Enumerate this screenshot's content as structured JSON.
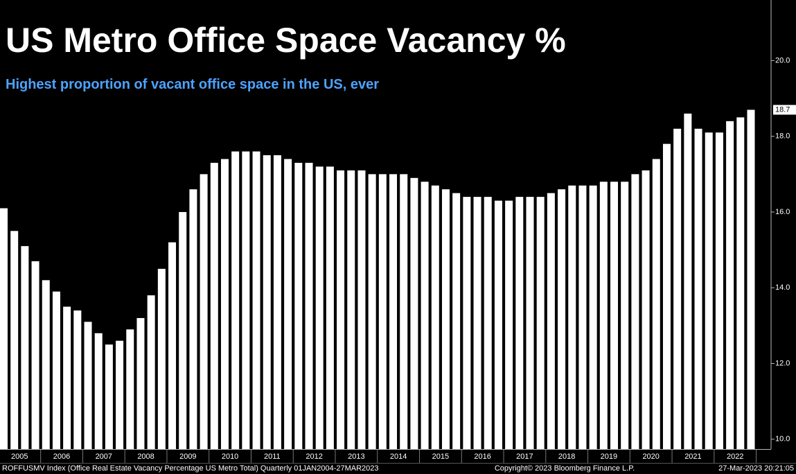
{
  "chart_data": {
    "type": "bar",
    "title": "US Metro Office Space Vacancy %",
    "subtitle": "Highest proportion of vacant office space in the US, ever",
    "categories": [
      "2005",
      null,
      null,
      null,
      "2006",
      null,
      null,
      null,
      "2007",
      null,
      null,
      null,
      "2008",
      null,
      null,
      null,
      "2009",
      null,
      null,
      null,
      "2010",
      null,
      null,
      null,
      "2011",
      null,
      null,
      null,
      "2012",
      null,
      null,
      null,
      "2013",
      null,
      null,
      null,
      "2014",
      null,
      null,
      null,
      "2015",
      null,
      null,
      null,
      "2016",
      null,
      null,
      null,
      "2017",
      null,
      null,
      null,
      "2018",
      null,
      null,
      null,
      "2019",
      null,
      null,
      null,
      "2020",
      null,
      null,
      null,
      "2021",
      null,
      null,
      null,
      "2022",
      null,
      null,
      null
    ],
    "values": [
      16.1,
      15.5,
      15.1,
      14.7,
      14.2,
      13.9,
      13.5,
      13.4,
      13.1,
      12.8,
      12.5,
      12.6,
      12.9,
      13.2,
      13.8,
      14.5,
      15.2,
      16.0,
      16.6,
      17.0,
      17.3,
      17.4,
      17.6,
      17.6,
      17.6,
      17.5,
      17.5,
      17.4,
      17.3,
      17.3,
      17.2,
      17.2,
      17.1,
      17.1,
      17.1,
      17.0,
      17.0,
      17.0,
      17.0,
      16.9,
      16.8,
      16.7,
      16.6,
      16.5,
      16.4,
      16.4,
      16.4,
      16.3,
      16.3,
      16.4,
      16.4,
      16.4,
      16.5,
      16.6,
      16.7,
      16.7,
      16.7,
      16.8,
      16.8,
      16.8,
      17.0,
      17.1,
      17.4,
      17.8,
      18.2,
      18.6,
      18.2,
      18.1,
      18.1,
      18.4,
      18.5,
      18.7
    ],
    "value_labels": [
      null,
      null,
      null,
      null,
      null,
      null,
      null,
      null,
      null,
      null,
      null,
      null,
      null,
      null,
      null,
      null,
      null,
      null,
      null,
      null,
      null,
      null,
      null,
      null,
      null,
      null,
      null,
      null,
      null,
      null,
      null,
      null,
      null,
      null,
      null,
      null,
      null,
      null,
      null,
      null,
      null,
      null,
      null,
      null,
      null,
      null,
      null,
      null,
      null,
      null,
      null,
      null,
      null,
      null,
      null,
      null,
      null,
      null,
      null,
      null,
      null,
      null,
      null,
      null,
      null,
      null,
      null,
      null,
      null,
      null,
      null,
      "18.7"
    ],
    "color": "#ffffff",
    "ylim": [
      9.74,
      21.6
    ],
    "yticks": [
      {
        "value": 10,
        "label": "10.0"
      },
      {
        "value": 12,
        "label": "12.0"
      },
      {
        "value": 14,
        "label": "14.0"
      },
      {
        "value": 16,
        "label": "16.0"
      },
      {
        "value": 18,
        "label": "18.0"
      },
      {
        "value": 20,
        "label": "20.0"
      }
    ],
    "y_axis_side": "right",
    "grid": false,
    "footer_left": "ROFFUSMV Index (Office Real Estate Vacancy Percentage US Metro Total)  Quarterly 01JAN2004-27MAR2023",
    "footer_center": "Copyright© 2023 Bloomberg Finance L.P.",
    "footer_right": "27-Mar-2023 20:21:05"
  }
}
